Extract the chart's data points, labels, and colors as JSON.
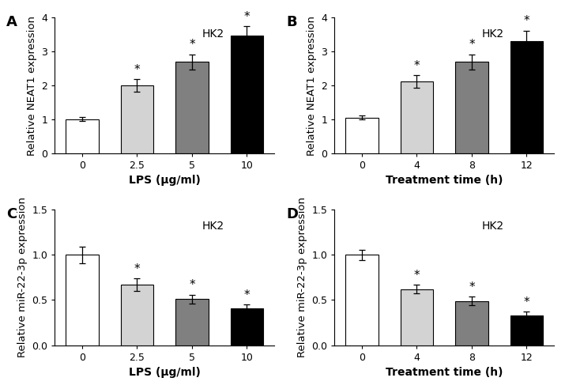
{
  "panel_A": {
    "label": "A",
    "title": "HK2",
    "xlabel": "LPS (μg/ml)",
    "ylabel": "Relative NEAT1 expression",
    "categories": [
      "0",
      "2.5",
      "5",
      "10"
    ],
    "values": [
      1.0,
      2.0,
      2.7,
      3.47
    ],
    "errors": [
      0.06,
      0.18,
      0.22,
      0.28
    ],
    "colors": [
      "#ffffff",
      "#d3d3d3",
      "#808080",
      "#000000"
    ],
    "ylim": [
      0,
      4
    ],
    "yticks": [
      0,
      1,
      2,
      3,
      4
    ],
    "sig": [
      false,
      true,
      true,
      true
    ]
  },
  "panel_B": {
    "label": "B",
    "title": "HK2",
    "xlabel": "Treatment time (h)",
    "ylabel": "Relative NEAT1 expression",
    "categories": [
      "0",
      "4",
      "8",
      "12"
    ],
    "values": [
      1.05,
      2.12,
      2.7,
      3.3
    ],
    "errors": [
      0.06,
      0.18,
      0.22,
      0.32
    ],
    "colors": [
      "#ffffff",
      "#d3d3d3",
      "#808080",
      "#000000"
    ],
    "ylim": [
      0,
      4
    ],
    "yticks": [
      0,
      1,
      2,
      3,
      4
    ],
    "sig": [
      false,
      true,
      true,
      true
    ]
  },
  "panel_C": {
    "label": "C",
    "title": "HK2",
    "xlabel": "LPS (μg/ml)",
    "ylabel": "Relative miR-22-3p expression",
    "categories": [
      "0",
      "2.5",
      "5",
      "10"
    ],
    "values": [
      1.0,
      0.67,
      0.51,
      0.41
    ],
    "errors": [
      0.09,
      0.07,
      0.05,
      0.04
    ],
    "colors": [
      "#ffffff",
      "#d3d3d3",
      "#808080",
      "#000000"
    ],
    "ylim": [
      0,
      1.5
    ],
    "yticks": [
      0.0,
      0.5,
      1.0,
      1.5
    ],
    "sig": [
      false,
      true,
      true,
      true
    ]
  },
  "panel_D": {
    "label": "D",
    "title": "HK2",
    "xlabel": "Treatment time (h)",
    "ylabel": "Relative miR-22-3p expression",
    "categories": [
      "0",
      "4",
      "8",
      "12"
    ],
    "values": [
      1.0,
      0.62,
      0.49,
      0.33
    ],
    "errors": [
      0.06,
      0.05,
      0.05,
      0.04
    ],
    "colors": [
      "#ffffff",
      "#d3d3d3",
      "#808080",
      "#000000"
    ],
    "ylim": [
      0,
      1.5
    ],
    "yticks": [
      0.0,
      0.5,
      1.0,
      1.5
    ],
    "sig": [
      false,
      true,
      true,
      true
    ]
  },
  "bar_width": 0.6,
  "edge_color": "#000000",
  "capsize": 3,
  "sig_marker": "*",
  "sig_fontsize": 11,
  "label_fontsize": 10,
  "tick_fontsize": 9,
  "title_fontsize": 10,
  "panel_label_fontsize": 13
}
